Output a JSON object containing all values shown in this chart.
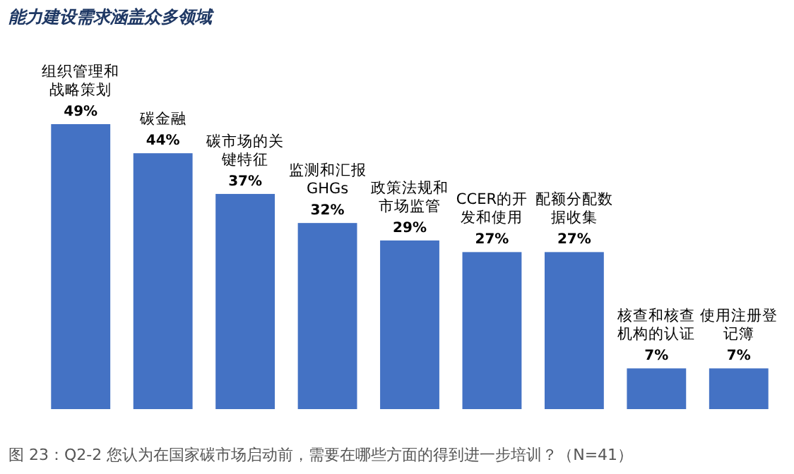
{
  "chart_data": {
    "type": "bar",
    "title": "能力建设需求涵盖众多领域",
    "categories": [
      "组织管理和战略策划",
      "碳金融",
      "碳市场的关键特征",
      "监测和汇报GHGs",
      "政策法规和市场监管",
      "CCER的开发和使用",
      "配额分配数据收集",
      "核查和核查机构的认证",
      "使用注册登记簿"
    ],
    "values": [
      49,
      44,
      37,
      32,
      29,
      27,
      27,
      7,
      7
    ],
    "value_labels": [
      "49%",
      "44%",
      "37%",
      "32%",
      "29%",
      "27%",
      "27%",
      "7%",
      "7%"
    ],
    "color": "#4472c4",
    "annotations": [
      "图 23：Q2-2 您认为在国家碳市场启动前，需要在哪些方面的得到进一步培训？（N=41）"
    ]
  }
}
